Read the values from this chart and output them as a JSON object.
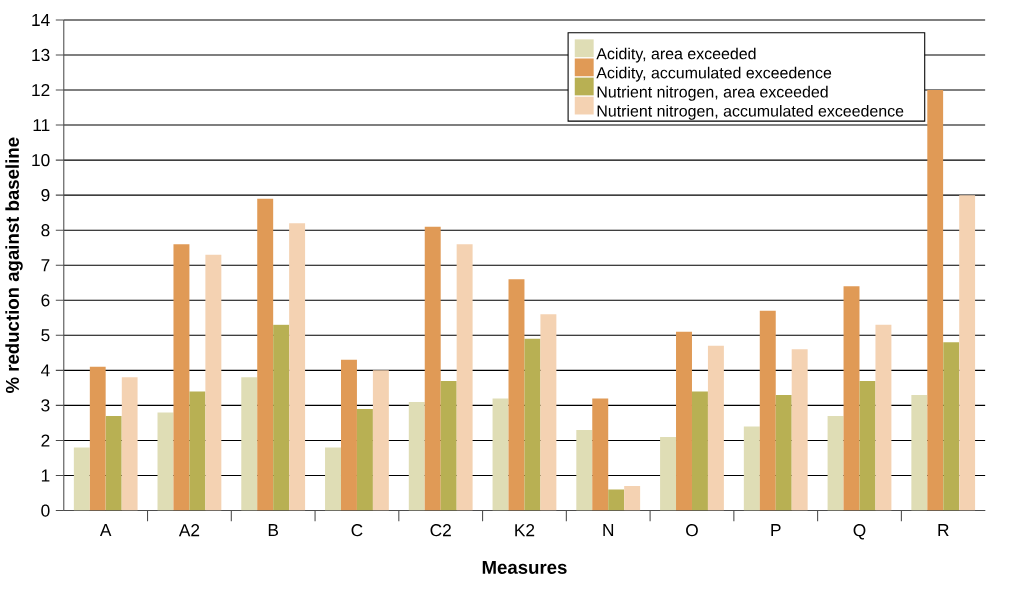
{
  "chart_data": {
    "type": "bar",
    "xlabel": "Measures",
    "ylabel": "% reduction against baseline",
    "categories": [
      "A",
      "A2",
      "B",
      "C",
      "C2",
      "K2",
      "N",
      "O",
      "P",
      "Q",
      "R"
    ],
    "series": [
      {
        "name": "Acidity, area exceeded",
        "color": "#dfddb5",
        "values": [
          1.8,
          2.8,
          3.8,
          1.8,
          3.1,
          3.2,
          2.3,
          2.1,
          2.4,
          2.7,
          3.3
        ]
      },
      {
        "name": "Acidity, accumulated exceedence",
        "color": "#e09a56",
        "values": [
          4.1,
          7.6,
          8.9,
          4.3,
          8.1,
          6.6,
          3.2,
          5.1,
          5.7,
          6.4,
          12.0
        ]
      },
      {
        "name": "Nutrient nitrogen, area exceeded",
        "color": "#b8b053",
        "values": [
          2.7,
          3.4,
          5.3,
          2.9,
          3.7,
          4.9,
          0.6,
          3.4,
          3.3,
          3.7,
          4.8
        ]
      },
      {
        "name": "Nutrient nitrogen, accumulated exceedence",
        "color": "#f4d2b2",
        "values": [
          3.8,
          7.3,
          8.2,
          4.0,
          7.6,
          5.6,
          0.7,
          4.7,
          4.6,
          5.3,
          9.0
        ]
      }
    ],
    "ylim": [
      0,
      14
    ],
    "yticks": [
      0,
      1,
      2,
      3,
      4,
      5,
      6,
      7,
      8,
      9,
      10,
      11,
      12,
      13,
      14
    ],
    "grid": "y",
    "legend": "top right"
  }
}
